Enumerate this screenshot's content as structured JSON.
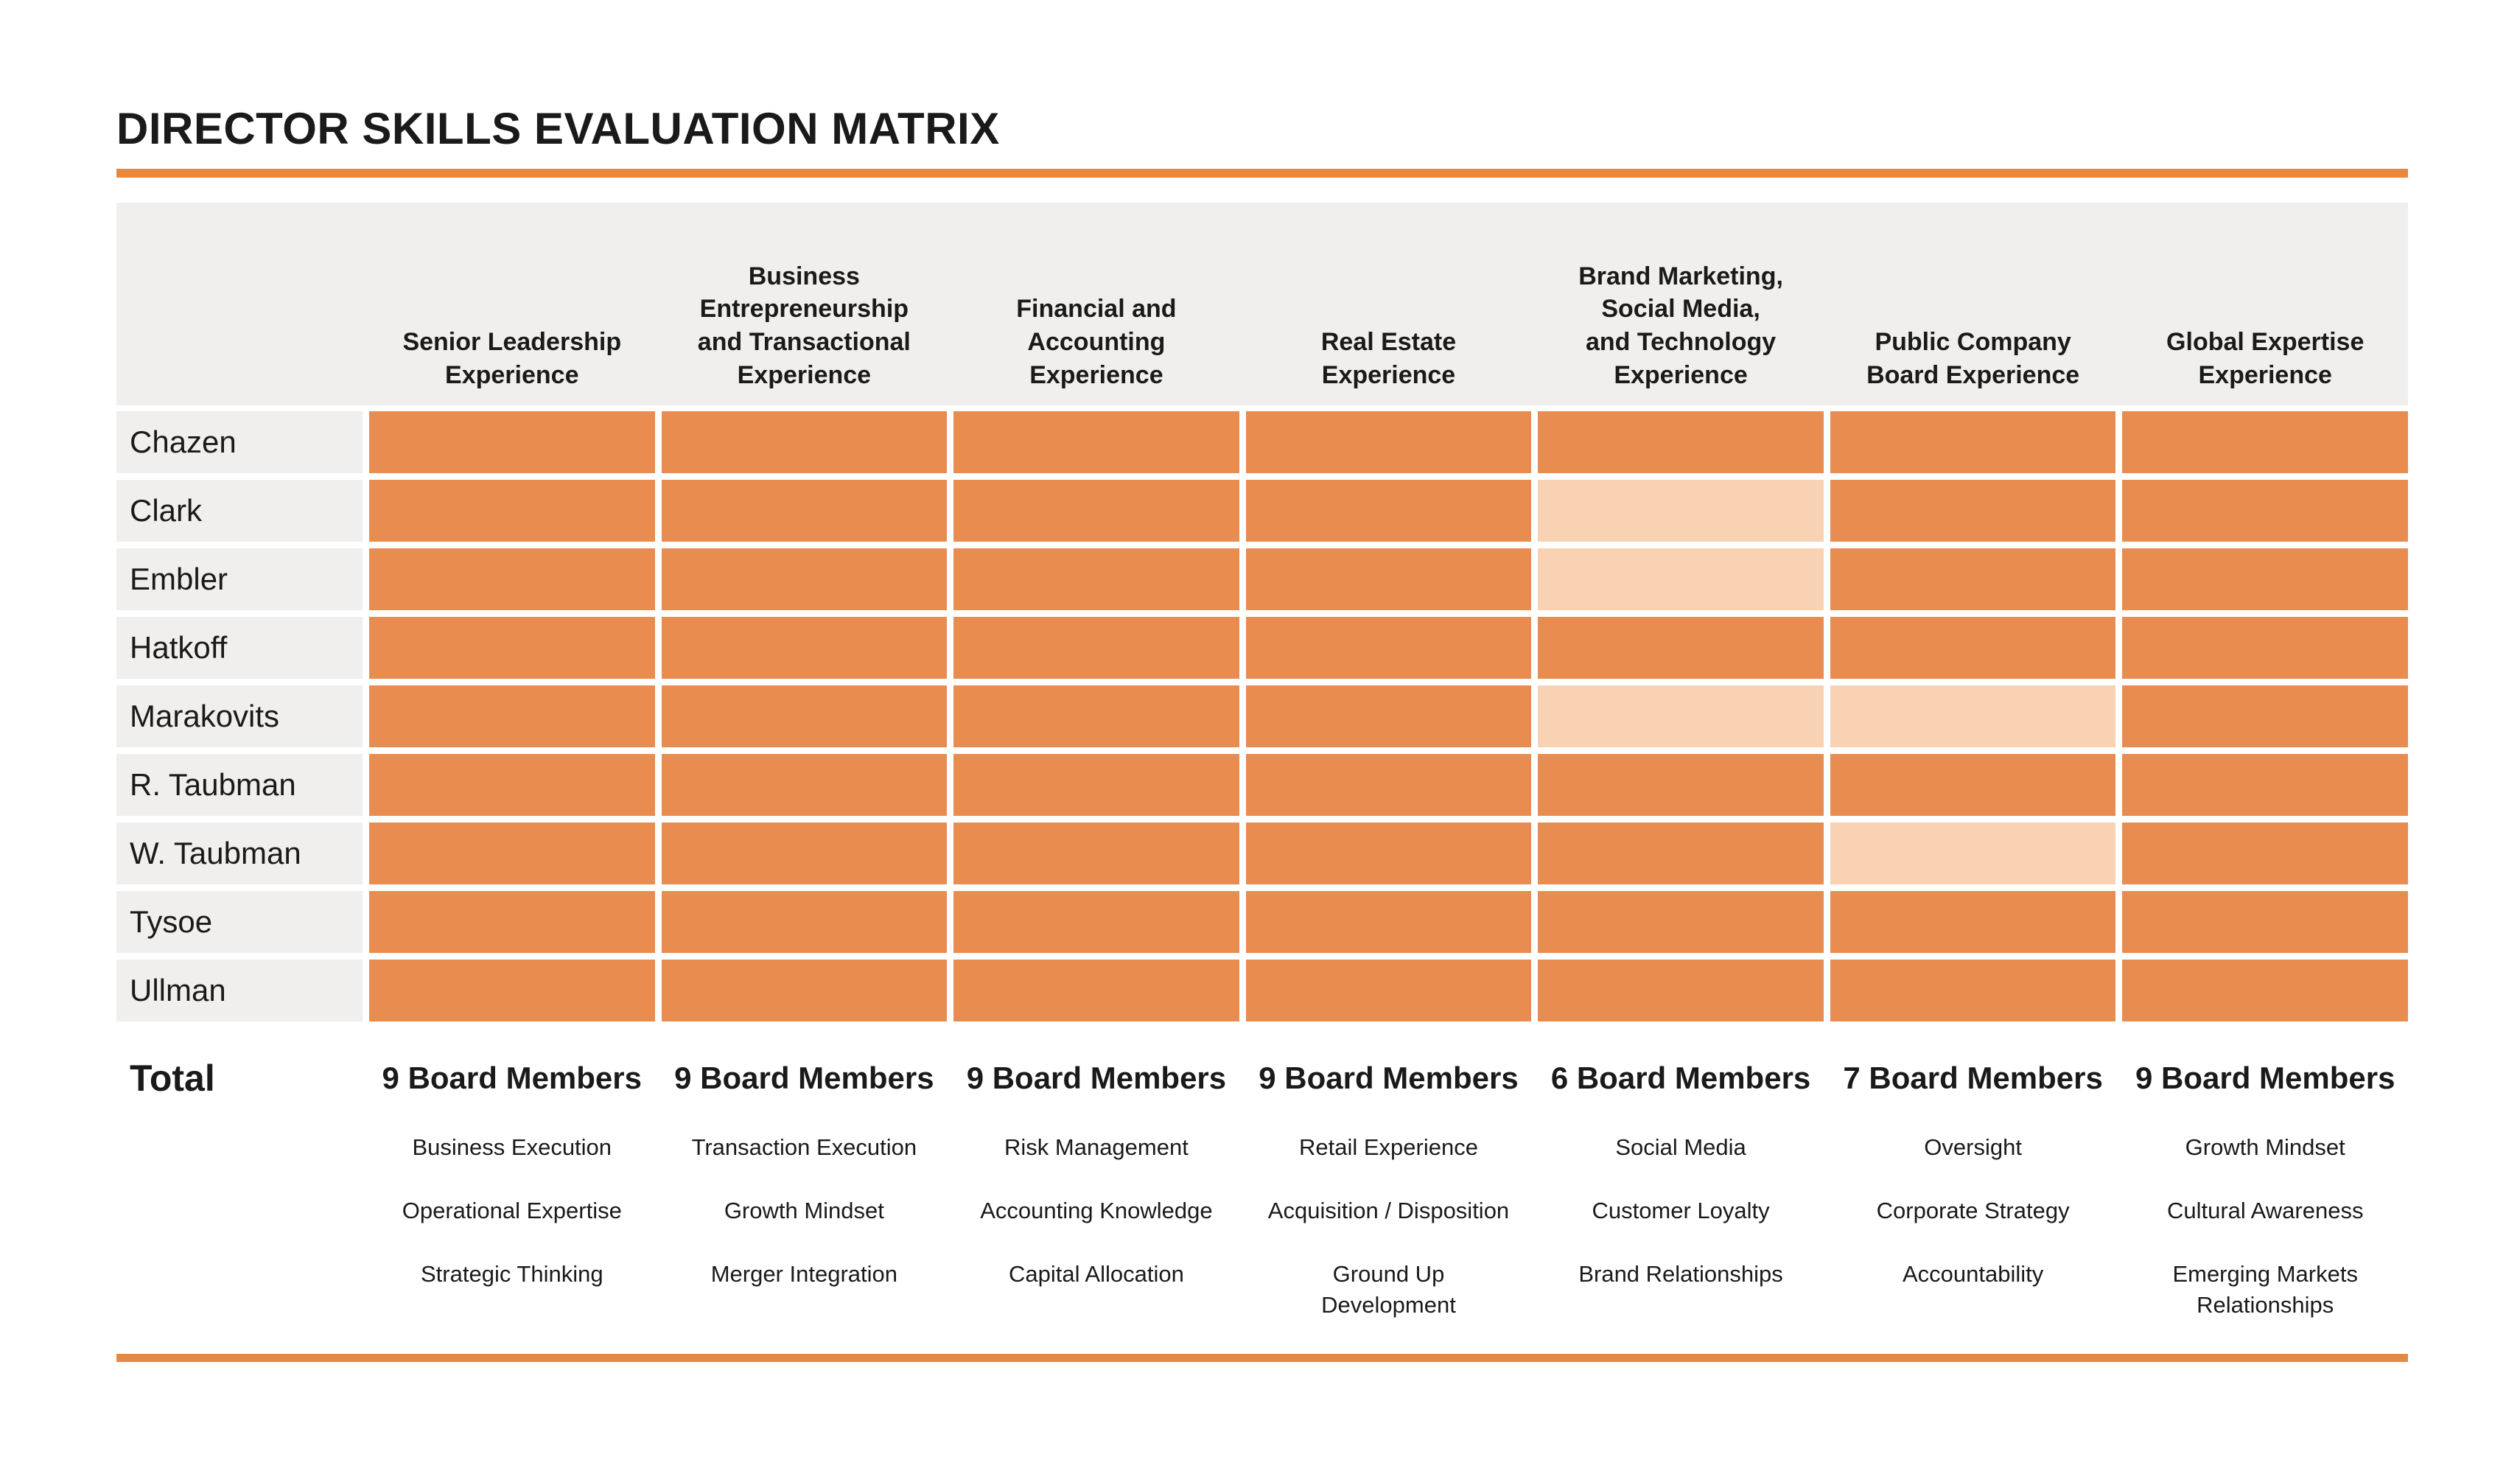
{
  "title": "DIRECTOR SKILLS EVALUATION MATRIX",
  "total_label": "Total",
  "colors": {
    "accent": "#E8873E",
    "cell_full": "#E98C4F",
    "cell_partial": "#F8D2B2",
    "band_bg": "#F0EFED"
  },
  "legend": {
    "cell_full_meaning": "filled-cell",
    "cell_partial_meaning": "partial-cell"
  },
  "columns": [
    {
      "key": "senior-leadership",
      "label": "Senior Leadership\nExperience",
      "total": "9 Board Members",
      "skills": [
        "Business Execution",
        "Operational Expertise",
        "Strategic Thinking"
      ]
    },
    {
      "key": "business-entrepreneurship",
      "label": "Business\nEntrepreneurship\nand Transactional\nExperience",
      "total": "9 Board Members",
      "skills": [
        "Transaction Execution",
        "Growth Mindset",
        "Merger Integration"
      ]
    },
    {
      "key": "financial-accounting",
      "label": "Financial and\nAccounting\nExperience",
      "total": "9 Board Members",
      "skills": [
        "Risk Management",
        "Accounting Knowledge",
        "Capital Allocation"
      ]
    },
    {
      "key": "real-estate",
      "label": "Real Estate\nExperience",
      "total": "9 Board Members",
      "skills": [
        "Retail Experience",
        "Acquisition / Disposition",
        "Ground Up\nDevelopment"
      ]
    },
    {
      "key": "brand-marketing",
      "label": "Brand Marketing,\nSocial Media,\nand Technology\nExperience",
      "total": "6 Board Members",
      "skills": [
        "Social Media",
        "Customer Loyalty",
        "Brand Relationships"
      ]
    },
    {
      "key": "public-company-board",
      "label": "Public Company\nBoard Experience",
      "total": "7 Board Members",
      "skills": [
        "Oversight",
        "Corporate Strategy",
        "Accountability"
      ]
    },
    {
      "key": "global-expertise",
      "label": "Global Expertise\nExperience",
      "total": "9 Board Members",
      "skills": [
        "Growth Mindset",
        "Cultural Awareness",
        "Emerging Markets\nRelationships"
      ]
    }
  ],
  "rows": [
    {
      "name": "Chazen",
      "cells": [
        1,
        1,
        1,
        1,
        1,
        1,
        1
      ]
    },
    {
      "name": "Clark",
      "cells": [
        1,
        1,
        1,
        1,
        0,
        1,
        1
      ]
    },
    {
      "name": "Embler",
      "cells": [
        1,
        1,
        1,
        1,
        0,
        1,
        1
      ]
    },
    {
      "name": "Hatkoff",
      "cells": [
        1,
        1,
        1,
        1,
        1,
        1,
        1
      ]
    },
    {
      "name": "Marakovits",
      "cells": [
        1,
        1,
        1,
        1,
        0,
        0,
        1
      ]
    },
    {
      "name": "R. Taubman",
      "cells": [
        1,
        1,
        1,
        1,
        1,
        1,
        1
      ]
    },
    {
      "name": "W. Taubman",
      "cells": [
        1,
        1,
        1,
        1,
        1,
        0,
        1
      ]
    },
    {
      "name": "Tysoe",
      "cells": [
        1,
        1,
        1,
        1,
        1,
        1,
        1
      ]
    },
    {
      "name": "Ullman",
      "cells": [
        1,
        1,
        1,
        1,
        1,
        1,
        1
      ]
    }
  ]
}
